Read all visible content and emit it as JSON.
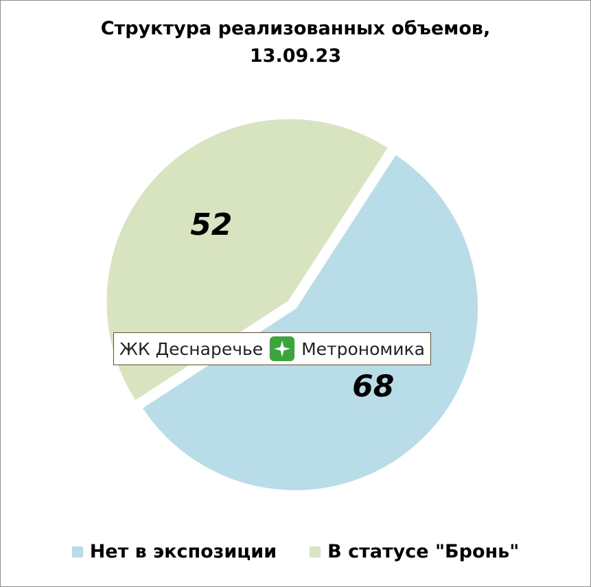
{
  "chart_data": {
    "type": "pie",
    "title": "Структура реализованных объемов,",
    "subtitle": "13.09.23",
    "slices": [
      {
        "name": "Нет в экспозиции",
        "value": 68,
        "color": "#b9dde8"
      },
      {
        "name": "В статусе \"Бронь\"",
        "value": 52,
        "color": "#d8e4bf"
      }
    ],
    "legend_position": "bottom",
    "exploded_slice": "В статусе \"Бронь\""
  },
  "watermark": {
    "left_text": "ЖК Деснаречье",
    "right_text": "Метрономика",
    "icon": "sparkle-icon"
  }
}
